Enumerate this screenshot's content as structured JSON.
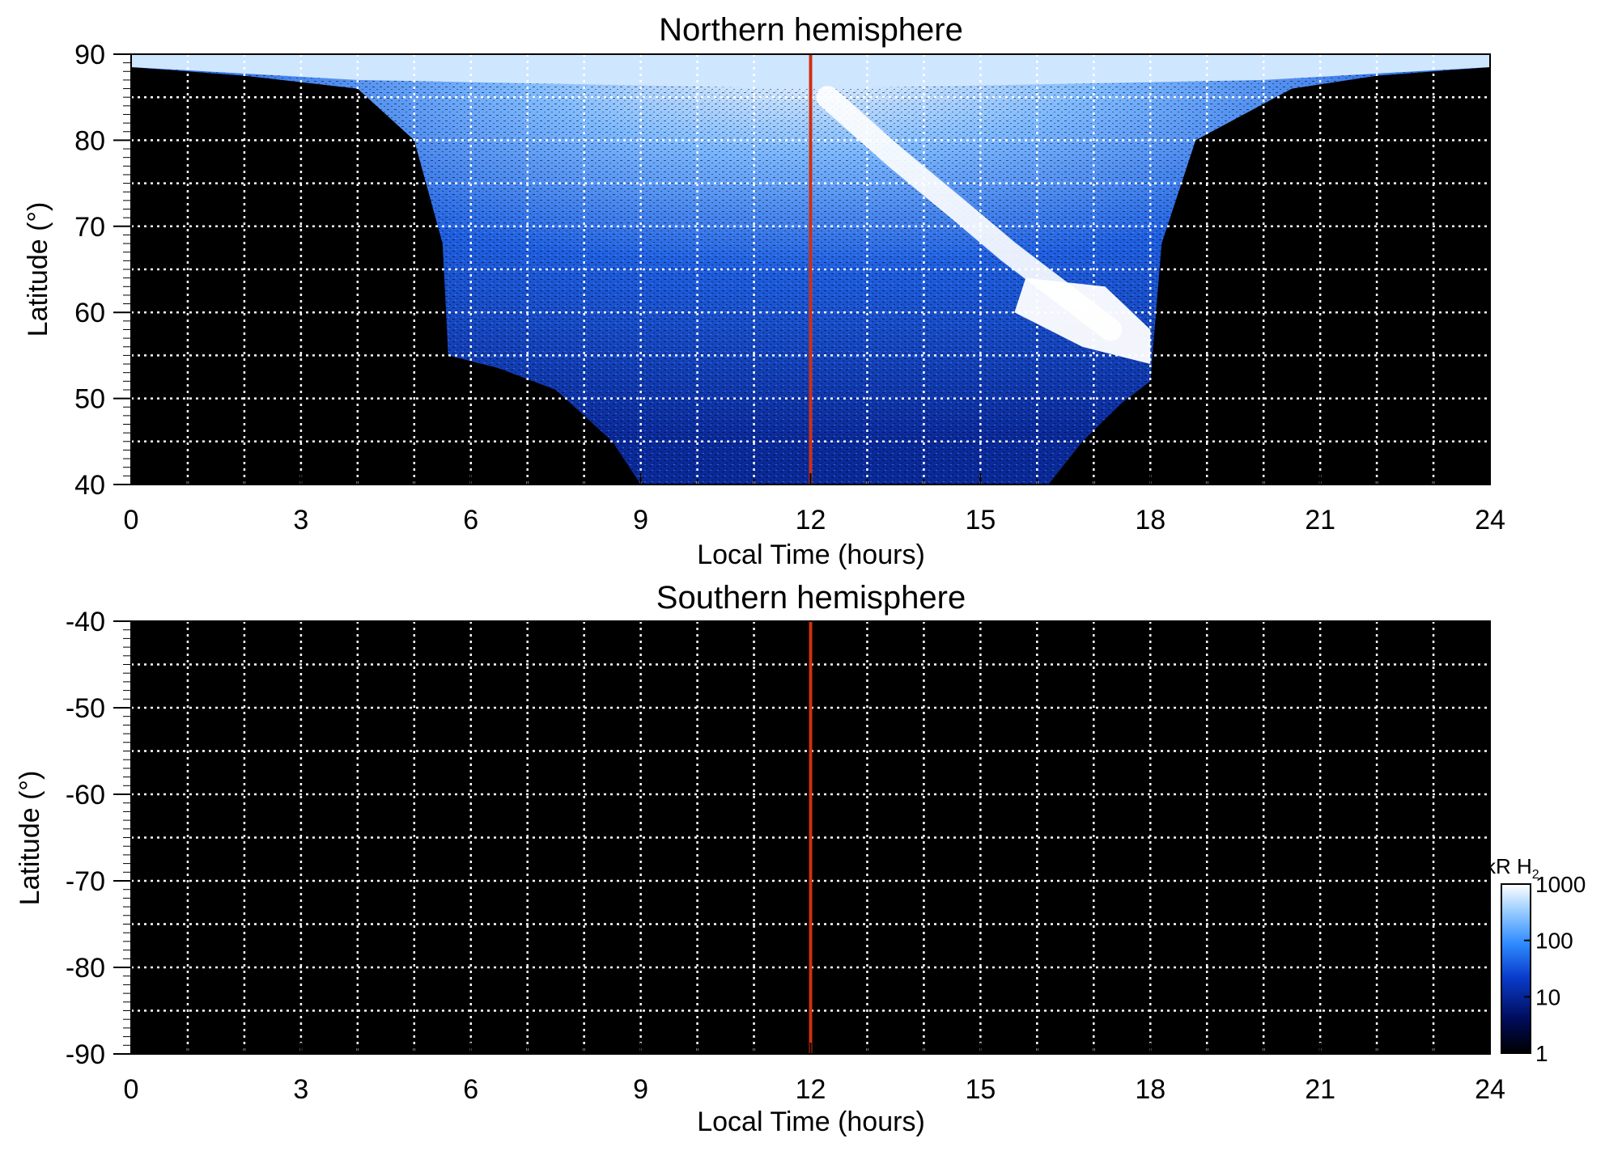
{
  "chart_data": [
    {
      "type": "heatmap",
      "title": "Northern hemisphere",
      "xlabel": "Local Time (hours)",
      "ylabel": "Latitude (°)",
      "xlim": [
        0,
        24
      ],
      "ylim": [
        40,
        90
      ],
      "xticks": [
        "0",
        "3",
        "6",
        "9",
        "12",
        "15",
        "18",
        "21",
        "24"
      ],
      "yticks": [
        "40",
        "50",
        "60",
        "70",
        "80",
        "90"
      ],
      "grid": true,
      "reference_line": {
        "x": 12,
        "color": "#d03010"
      },
      "features": [
        {
          "description": "Dayside emission region",
          "lt_range": [
            5.5,
            18
          ],
          "lat_min_at_noon": 40
        },
        {
          "description": "Bright auroral arc",
          "lt_range": [
            12,
            18
          ],
          "lat_range": [
            55,
            90
          ]
        }
      ]
    },
    {
      "type": "heatmap",
      "title": "Southern hemisphere",
      "xlabel": "Local Time (hours)",
      "ylabel": "Latitude (°)",
      "xlim": [
        0,
        24
      ],
      "ylim": [
        -90,
        -40
      ],
      "xticks": [
        "0",
        "3",
        "6",
        "9",
        "12",
        "15",
        "18",
        "21",
        "24"
      ],
      "yticks": [
        "-40",
        "-50",
        "-60",
        "-70",
        "-80",
        "-90"
      ],
      "grid": true,
      "reference_line": {
        "x": 12,
        "color": "#d03010"
      },
      "features": []
    }
  ],
  "colorbar": {
    "label": "kR H",
    "label_sub": "2",
    "scale": "log",
    "range": [
      1,
      1000
    ],
    "ticks": [
      "1000",
      "100",
      "10",
      "1"
    ],
    "colors": [
      "#000000",
      "#000c5a",
      "#0a3ccc",
      "#2f8cff",
      "#a0d0ff",
      "#ffffff"
    ]
  }
}
